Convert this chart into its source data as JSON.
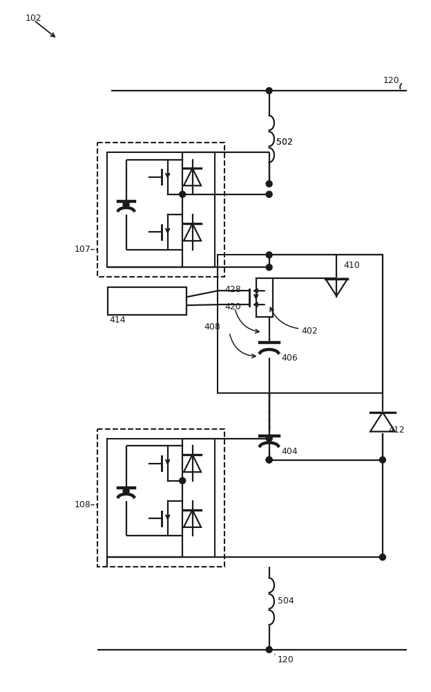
{
  "bg": "#ffffff",
  "lc": "#1a1a1a",
  "lw": 1.6,
  "fw": 6.24,
  "fh": 10.0
}
